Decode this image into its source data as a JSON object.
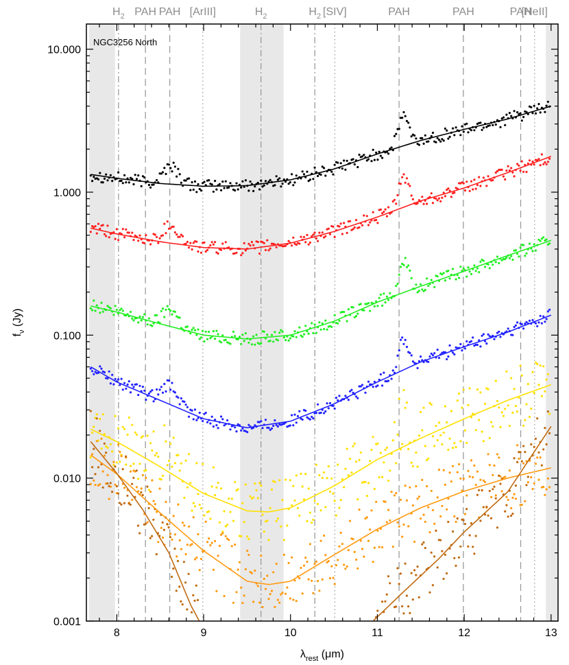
{
  "chart_data": {
    "type": "scatter",
    "annotation": "NGC3256  North",
    "xlabel": "λrest (μm)",
    "ylabel": "fν (Jy)",
    "xlim": [
      7.65,
      13.08
    ],
    "ylim": [
      0.001,
      15
    ],
    "yscale": "log",
    "x_ticks": [
      8,
      9,
      10,
      11,
      12,
      13
    ],
    "y_ticks": [
      {
        "value": 0.001,
        "label": "0.001"
      },
      {
        "value": 0.01,
        "label": "0.010"
      },
      {
        "value": 0.1,
        "label": "0.100"
      },
      {
        "value": 1,
        "label": "1.000"
      },
      {
        "value": 10,
        "label": "10.000"
      }
    ],
    "shaded_regions": [
      [
        7.68,
        7.98
      ],
      [
        9.42,
        9.92
      ],
      [
        12.94,
        13.08
      ]
    ],
    "lines": [
      {
        "x": 8.02,
        "style": "dashdot",
        "label_main": "H",
        "label_sub": "2"
      },
      {
        "x": 8.33,
        "style": "dashed",
        "label_main": "PAH",
        "label_sub": ""
      },
      {
        "x": 8.61,
        "style": "dashed",
        "label_main": "PAH",
        "label_sub": ""
      },
      {
        "x": 8.99,
        "style": "dotted",
        "label_main": "[ArIII]",
        "label_sub": ""
      },
      {
        "x": 9.66,
        "style": "dashdot",
        "label_main": "H",
        "label_sub": "2"
      },
      {
        "x": 10.28,
        "style": "dashdot",
        "label_main": "H",
        "label_sub": "2"
      },
      {
        "x": 10.51,
        "style": "dotted",
        "label_main": "[SIV]",
        "label_sub": ""
      },
      {
        "x": 11.25,
        "style": "dashed",
        "label_main": "PAH",
        "label_sub": ""
      },
      {
        "x": 11.99,
        "style": "dashed",
        "label_main": "PAH",
        "label_sub": ""
      },
      {
        "x": 12.65,
        "style": "dashed",
        "label_main": "PAH",
        "label_sub": ""
      },
      {
        "x": 12.81,
        "style": "dotted",
        "label_main": "[NeII]",
        "label_sub": ""
      }
    ],
    "series": [
      {
        "color": "#000000",
        "fit": [
          [
            7.7,
            1.33
          ],
          [
            8.0,
            1.25
          ],
          [
            8.5,
            1.15
          ],
          [
            9.0,
            1.1
          ],
          [
            9.5,
            1.11
          ],
          [
            10.0,
            1.22
          ],
          [
            10.5,
            1.45
          ],
          [
            11.0,
            1.85
          ],
          [
            11.5,
            2.3
          ],
          [
            12.0,
            2.75
          ],
          [
            12.5,
            3.25
          ],
          [
            13.0,
            4.0
          ]
        ]
      },
      {
        "color": "#ff2020",
        "fit": [
          [
            7.7,
            0.56
          ],
          [
            8.0,
            0.51
          ],
          [
            8.5,
            0.45
          ],
          [
            9.0,
            0.41
          ],
          [
            9.5,
            0.4
          ],
          [
            10.0,
            0.44
          ],
          [
            10.5,
            0.53
          ],
          [
            11.0,
            0.67
          ],
          [
            11.5,
            0.87
          ],
          [
            12.0,
            1.07
          ],
          [
            12.5,
            1.37
          ],
          [
            13.0,
            1.78
          ]
        ]
      },
      {
        "color": "#22ee22",
        "fit": [
          [
            7.7,
            0.16
          ],
          [
            8.0,
            0.145
          ],
          [
            8.5,
            0.12
          ],
          [
            9.0,
            0.1
          ],
          [
            9.5,
            0.094
          ],
          [
            10.0,
            0.1
          ],
          [
            10.5,
            0.125
          ],
          [
            11.0,
            0.17
          ],
          [
            11.5,
            0.22
          ],
          [
            12.0,
            0.28
          ],
          [
            12.5,
            0.36
          ],
          [
            13.0,
            0.46
          ]
        ]
      },
      {
        "color": "#2222ff",
        "fit": [
          [
            7.7,
            0.06
          ],
          [
            8.0,
            0.047
          ],
          [
            8.5,
            0.035
          ],
          [
            9.0,
            0.026
          ],
          [
            9.5,
            0.0225
          ],
          [
            10.0,
            0.025
          ],
          [
            10.5,
            0.033
          ],
          [
            11.0,
            0.047
          ],
          [
            11.5,
            0.065
          ],
          [
            12.0,
            0.083
          ],
          [
            12.5,
            0.105
          ],
          [
            13.0,
            0.138
          ]
        ]
      },
      {
        "color": "#ffe000",
        "fit": [
          [
            7.7,
            0.022
          ],
          [
            8.0,
            0.018
          ],
          [
            8.5,
            0.012
          ],
          [
            9.0,
            0.0078
          ],
          [
            9.5,
            0.0059
          ],
          [
            9.75,
            0.0058
          ],
          [
            10.0,
            0.0062
          ],
          [
            10.5,
            0.0088
          ],
          [
            11.0,
            0.0135
          ],
          [
            11.5,
            0.019
          ],
          [
            12.0,
            0.026
          ],
          [
            12.5,
            0.035
          ],
          [
            13.0,
            0.045
          ]
        ]
      },
      {
        "color": "#ff9a10",
        "fit": [
          [
            7.7,
            0.0145
          ],
          [
            8.0,
            0.0107
          ],
          [
            8.5,
            0.0057
          ],
          [
            9.0,
            0.0031
          ],
          [
            9.5,
            0.0019
          ],
          [
            9.75,
            0.0018
          ],
          [
            10.0,
            0.0019
          ],
          [
            10.5,
            0.0029
          ],
          [
            11.0,
            0.0044
          ],
          [
            11.5,
            0.0062
          ],
          [
            12.0,
            0.0081
          ],
          [
            12.5,
            0.01
          ],
          [
            13.0,
            0.0118
          ]
        ]
      },
      {
        "color": "#c06a10",
        "fit": [
          [
            7.7,
            0.018
          ],
          [
            8.0,
            0.0108
          ],
          [
            8.3,
            0.006
          ],
          [
            8.6,
            0.003
          ],
          [
            8.85,
            0.0013
          ],
          [
            8.95,
            0.001
          ]
        ],
        "fit2": [
          [
            10.95,
            0.001
          ],
          [
            11.3,
            0.0016
          ],
          [
            11.7,
            0.0027
          ],
          [
            12.0,
            0.0042
          ],
          [
            12.5,
            0.008
          ],
          [
            13.0,
            0.023
          ]
        ]
      }
    ]
  }
}
